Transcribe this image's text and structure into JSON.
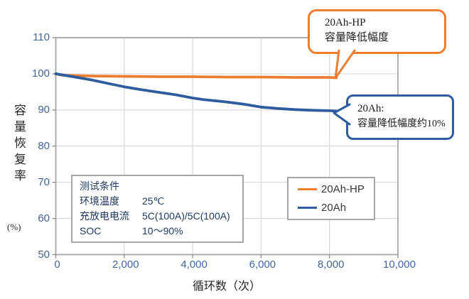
{
  "colors": {
    "orange": "#ED7D31",
    "blue": "#2E5C9E",
    "grid": "#D9D9D9",
    "plot_border": "#A6A6A6",
    "tick_mark": "#8C8C8C",
    "tick_text": "#45639A",
    "conditions_text": "#1F3864"
  },
  "chart_data": {
    "type": "line",
    "title": "",
    "xlabel": "循环数（次）",
    "ylabel": "容量恢复率(%)",
    "ylabel_main": "容量恢复率",
    "ylabel_unit": "(%)",
    "xlim": [
      0,
      10000
    ],
    "ylim": [
      50,
      110
    ],
    "grid": true,
    "x_ticks": [
      {
        "v": 0,
        "label": "0"
      },
      {
        "v": 2000,
        "label": "2,000"
      },
      {
        "v": 4000,
        "label": "4,000"
      },
      {
        "v": 6000,
        "label": "6,000"
      },
      {
        "v": 8000,
        "label": "8,000"
      },
      {
        "v": 10000,
        "label": "10,000"
      }
    ],
    "y_ticks": [
      {
        "v": 110,
        "label": "110"
      },
      {
        "v": 100,
        "label": "100"
      },
      {
        "v": 90,
        "label": "90"
      },
      {
        "v": 80,
        "label": "80"
      },
      {
        "v": 70,
        "label": "70"
      },
      {
        "v": 60,
        "label": "60"
      },
      {
        "v": 50,
        "label": "50"
      }
    ],
    "series": [
      {
        "name": "20Ah-HP",
        "color": "#ED7D31",
        "x": [
          0,
          200,
          1000,
          2000,
          3000,
          4000,
          5000,
          6000,
          7000,
          8000,
          8200
        ],
        "y": [
          100,
          99.6,
          99.4,
          99.3,
          99.2,
          99.2,
          99.1,
          99.1,
          99.0,
          99.0,
          98.9
        ]
      },
      {
        "name": "20Ah",
        "color": "#2E5C9E",
        "x": [
          0,
          500,
          1000,
          1500,
          2000,
          2500,
          3000,
          3500,
          4000,
          4300,
          5000,
          5500,
          6000,
          6500,
          7000,
          7500,
          8000,
          8200
        ],
        "y": [
          100,
          99.2,
          98.4,
          97.4,
          96.4,
          95.6,
          94.9,
          94.2,
          93.3,
          92.9,
          92.2,
          91.6,
          90.8,
          90.4,
          90.1,
          89.9,
          89.8,
          89.7
        ]
      }
    ],
    "legend": {
      "position": "inside-lower-right",
      "items": [
        {
          "label": "20Ah-HP",
          "color": "#ED7D31"
        },
        {
          "label": "20Ah",
          "color": "#2E5C9E"
        }
      ]
    }
  },
  "annotations": {
    "hp_callout": {
      "line1": "20Ah-HP",
      "line2": "容量降低幅度"
    },
    "ah_callout": {
      "line1": "20Ah:",
      "line2": "容量降低幅度约10%"
    }
  },
  "conditions_box": {
    "title": "测试条件",
    "rows": [
      {
        "label": "环境温度",
        "value": "25℃"
      },
      {
        "label": "充放电电流",
        "value": "5C(100A)/5C(100A)"
      },
      {
        "label": "SOC",
        "value": "10～90%"
      }
    ]
  }
}
